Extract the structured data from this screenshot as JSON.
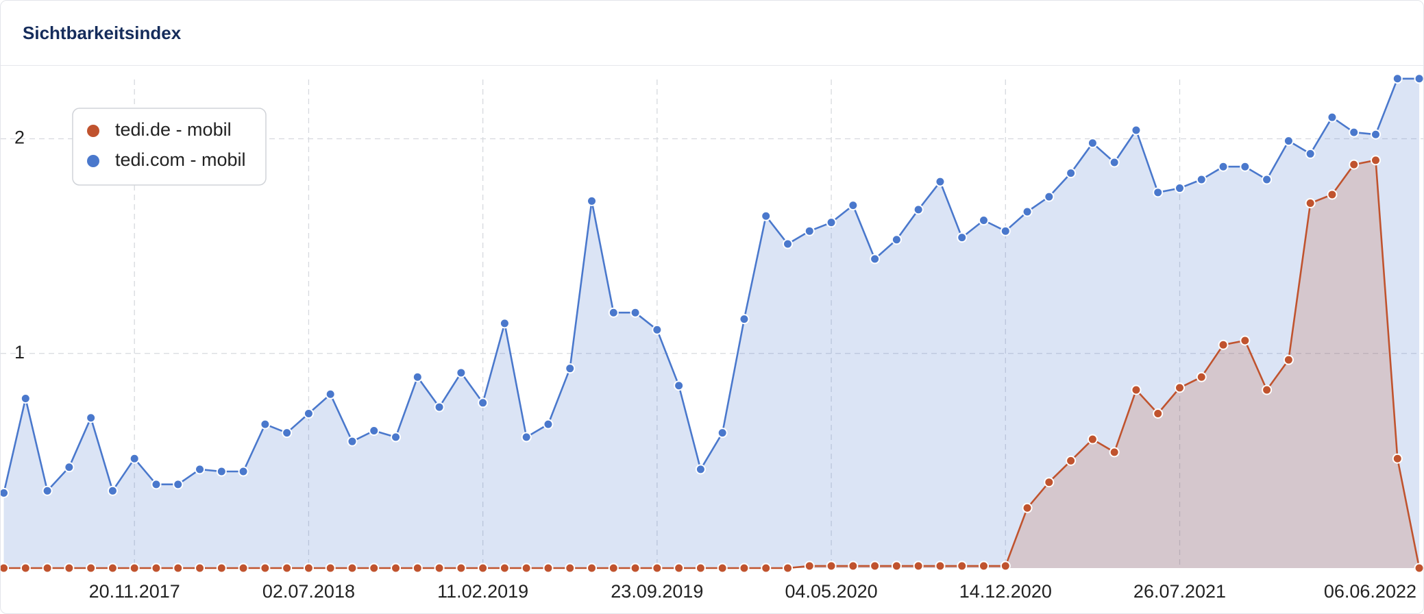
{
  "chart_data": {
    "type": "line",
    "title": "Sichtbarkeitsindex",
    "x": [
      "2017-06-05",
      "2017-07-03",
      "2017-07-31",
      "2017-08-28",
      "2017-09-25",
      "2017-10-23",
      "2017-11-20",
      "2017-12-18",
      "2018-01-15",
      "2018-02-12",
      "2018-03-12",
      "2018-04-09",
      "2018-05-07",
      "2018-06-04",
      "2018-07-02",
      "2018-07-30",
      "2018-08-27",
      "2018-09-24",
      "2018-10-22",
      "2018-11-19",
      "2018-12-17",
      "2019-01-14",
      "2019-02-11",
      "2019-03-11",
      "2019-04-08",
      "2019-05-06",
      "2019-06-03",
      "2019-07-01",
      "2019-07-29",
      "2019-08-26",
      "2019-09-23",
      "2019-10-21",
      "2019-11-18",
      "2019-12-16",
      "2020-01-13",
      "2020-02-10",
      "2020-03-09",
      "2020-04-06",
      "2020-05-04",
      "2020-06-01",
      "2020-06-29",
      "2020-07-27",
      "2020-08-24",
      "2020-09-21",
      "2020-10-19",
      "2020-11-16",
      "2020-12-14",
      "2021-01-11",
      "2021-02-08",
      "2021-03-08",
      "2021-04-05",
      "2021-05-03",
      "2021-05-31",
      "2021-06-28",
      "2021-07-26",
      "2021-08-23",
      "2021-09-20",
      "2021-10-18",
      "2021-11-15",
      "2021-12-13",
      "2022-01-10",
      "2022-02-07",
      "2022-03-07",
      "2022-04-04",
      "2022-05-02",
      "2022-05-30"
    ],
    "series": [
      {
        "name": "tedi.com - mobil",
        "color": "#4a78cc",
        "values": [
          0.35,
          0.79,
          0.36,
          0.47,
          0.7,
          0.36,
          0.51,
          0.39,
          0.39,
          0.46,
          0.45,
          0.45,
          0.67,
          0.63,
          0.72,
          0.81,
          0.59,
          0.64,
          0.61,
          0.89,
          0.75,
          0.91,
          0.77,
          1.14,
          0.61,
          0.67,
          0.93,
          1.71,
          1.19,
          1.19,
          1.11,
          0.85,
          0.46,
          0.63,
          1.16,
          1.64,
          1.51,
          1.57,
          1.61,
          1.69,
          1.44,
          1.53,
          1.67,
          1.8,
          1.54,
          1.62,
          1.57,
          1.66,
          1.73,
          1.84,
          1.98,
          1.89,
          2.04,
          1.75,
          1.77,
          1.81,
          1.87,
          1.87,
          1.81,
          1.99,
          1.93,
          2.1,
          2.03,
          2.02,
          2.28,
          2.28
        ]
      },
      {
        "name": "tedi.de - mobil",
        "color": "#c0532e",
        "values": [
          0,
          0,
          0,
          0,
          0,
          0,
          0,
          0,
          0,
          0,
          0,
          0,
          0,
          0,
          0,
          0,
          0,
          0,
          0,
          0,
          0,
          0,
          0,
          0,
          0,
          0,
          0,
          0,
          0,
          0,
          0,
          0,
          0,
          0,
          0,
          0,
          0,
          0.01,
          0.01,
          0.01,
          0.01,
          0.01,
          0.01,
          0.01,
          0.01,
          0.01,
          0.01,
          0.28,
          0.4,
          0.5,
          0.6,
          0.54,
          0.83,
          0.72,
          0.84,
          0.89,
          1.04,
          1.06,
          0.83,
          0.97,
          1.7,
          1.74,
          1.88,
          1.9,
          0.51,
          0
        ]
      }
    ],
    "legend_order": [
      1,
      0
    ],
    "xlim": [
      "2017-06-01",
      "2022-06-06"
    ],
    "xticks": [
      {
        "value": "2017-11-20",
        "label": "20.11.2017"
      },
      {
        "value": "2018-07-02",
        "label": "02.07.2018"
      },
      {
        "value": "2019-02-11",
        "label": "11.02.2019"
      },
      {
        "value": "2019-09-23",
        "label": "23.09.2019"
      },
      {
        "value": "2020-05-04",
        "label": "04.05.2020"
      },
      {
        "value": "2020-12-14",
        "label": "14.12.2020"
      },
      {
        "value": "2021-07-26",
        "label": "26.07.2021"
      },
      {
        "value": "2022-06-06",
        "label": "06.06.2022"
      }
    ],
    "ylim": [
      0,
      2.34
    ],
    "yticks": [
      1,
      2
    ],
    "grid": true,
    "legend": "top-left"
  }
}
